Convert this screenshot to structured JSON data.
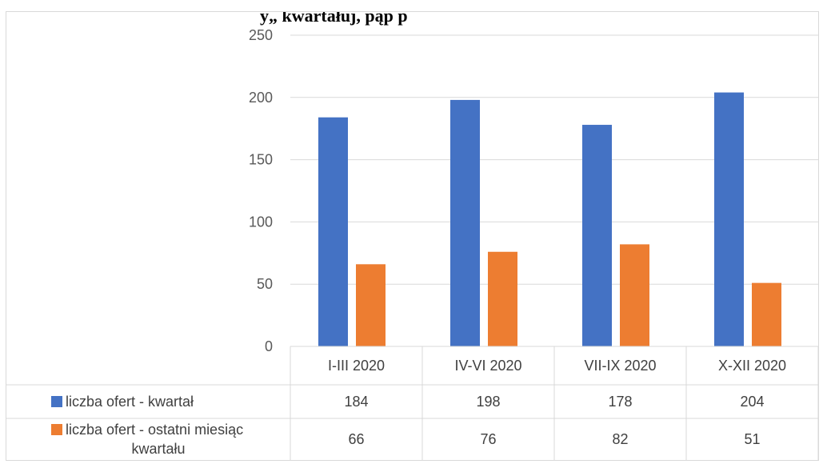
{
  "chart_data": {
    "type": "bar",
    "title": "y„ kwartałuj, pąp p",
    "categories": [
      "I-III 2020",
      "IV-VI 2020",
      "VII-IX 2020",
      "X-XII 2020"
    ],
    "series": [
      {
        "name": "liczba ofert - kwartał",
        "name_lines": [
          "liczba ofert - kwartał"
        ],
        "color": "#4472c4",
        "values": [
          184,
          198,
          178,
          204
        ]
      },
      {
        "name": "liczba ofert - ostatni miesiąc kwartału",
        "name_lines": [
          "liczba ofert - ostatni miesiąc",
          "kwartału"
        ],
        "color": "#ed7d31",
        "values": [
          66,
          76,
          82,
          51
        ]
      }
    ],
    "ylim": [
      0,
      250
    ],
    "yticks": [
      "0",
      "50",
      "100",
      "150",
      "200",
      "250"
    ],
    "grid": true,
    "legend": "data-table",
    "xlabel": "",
    "ylabel": ""
  }
}
